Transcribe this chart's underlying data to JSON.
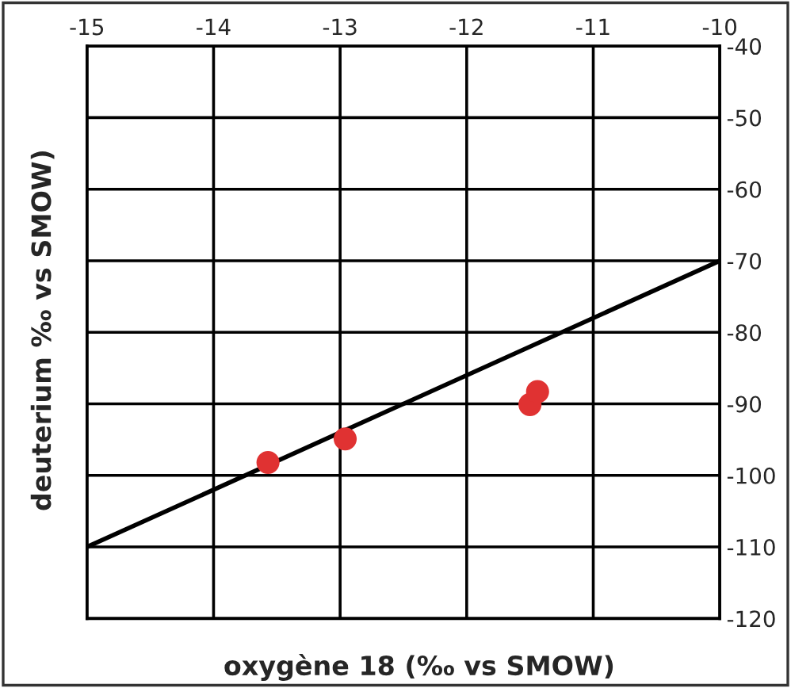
{
  "chart_data": {
    "type": "scatter",
    "xlabel": "oxygène 18 (‰ vs SMOW)",
    "ylabel": "deuterium ‰ vs SMOW)",
    "series": [
      {
        "marker": "circle",
        "color": "#e03232",
        "x": [
          -13.57,
          -12.96,
          -11.5,
          -11.44
        ],
        "values": [
          -98.2,
          -94.9,
          -90.1,
          -88.3
        ]
      },
      {
        "type": "line",
        "color": "#000000",
        "x": [
          -15,
          -10
        ],
        "values": [
          -110,
          -70
        ]
      }
    ],
    "xlim": [
      -15,
      -10
    ],
    "xticks": [
      -15,
      -14,
      -13,
      -12,
      -11,
      -10
    ],
    "ylim": [
      -120,
      -40
    ],
    "yticks": [
      -120,
      -110,
      -100,
      -90,
      -80,
      -70,
      -60,
      -50,
      -40
    ],
    "grid": true
  }
}
